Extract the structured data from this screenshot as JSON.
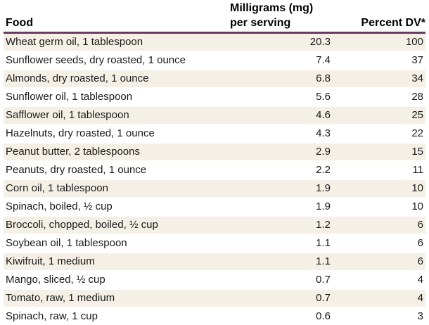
{
  "colors": {
    "stripe": "#f5f0e6",
    "rule": "#6d3a64",
    "text": "#1a1a1a"
  },
  "chart_data": {
    "type": "table",
    "columns": [
      {
        "label": "Food"
      },
      {
        "label_line1": "Milligrams (mg)",
        "label_line2": "per serving"
      },
      {
        "label": "Percent DV*"
      }
    ],
    "rows": [
      {
        "food": "Wheat germ oil, 1 tablespoon",
        "mg": "20.3",
        "dv": "100"
      },
      {
        "food": "Sunflower seeds, dry roasted, 1 ounce",
        "mg": "7.4",
        "dv": "37"
      },
      {
        "food": "Almonds, dry roasted, 1 ounce",
        "mg": "6.8",
        "dv": "34"
      },
      {
        "food": "Sunflower oil, 1 tablespoon",
        "mg": "5.6",
        "dv": "28"
      },
      {
        "food": "Safflower oil, 1 tablespoon",
        "mg": "4.6",
        "dv": "25"
      },
      {
        "food": "Hazelnuts, dry roasted, 1 ounce",
        "mg": "4.3",
        "dv": "22"
      },
      {
        "food": "Peanut butter, 2 tablespoons",
        "mg": "2.9",
        "dv": "15"
      },
      {
        "food": "Peanuts, dry roasted, 1 ounce",
        "mg": "2.2",
        "dv": "11"
      },
      {
        "food": "Corn oil, 1 tablespoon",
        "mg": "1.9",
        "dv": "10"
      },
      {
        "food": "Spinach, boiled, ½ cup",
        "mg": "1.9",
        "dv": "10"
      },
      {
        "food": "Broccoli, chopped, boiled, ½ cup",
        "mg": "1.2",
        "dv": "6"
      },
      {
        "food": "Soybean oil, 1 tablespoon",
        "mg": "1.1",
        "dv": "6"
      },
      {
        "food": "Kiwifruit, 1 medium",
        "mg": "1.1",
        "dv": "6"
      },
      {
        "food": "Mango, sliced, ½ cup",
        "mg": "0.7",
        "dv": "4"
      },
      {
        "food": "Tomato, raw, 1 medium",
        "mg": "0.7",
        "dv": "4"
      },
      {
        "food": "Spinach, raw, 1 cup",
        "mg": "0.6",
        "dv": "3"
      }
    ]
  }
}
